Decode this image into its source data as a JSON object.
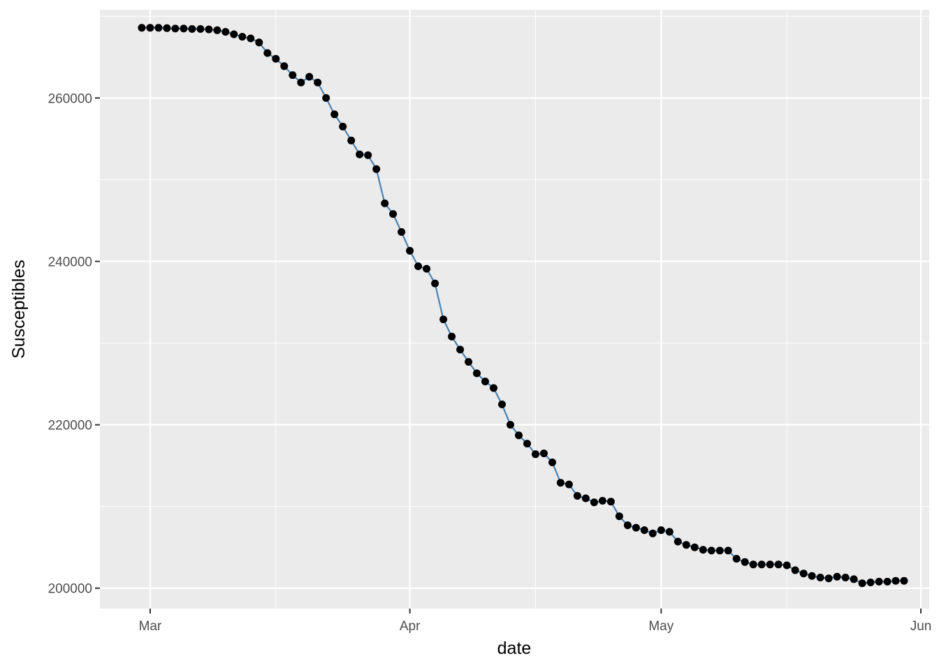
{
  "chart_data": {
    "type": "line",
    "xlabel": "date",
    "ylabel": "Susceptibles",
    "x_range": [
      "2020-02-24",
      "2020-06-02"
    ],
    "ylim": [
      197500,
      270800
    ],
    "x_ticks": [
      {
        "date": "2020-03-01",
        "label": "Mar"
      },
      {
        "date": "2020-04-01",
        "label": "Apr"
      },
      {
        "date": "2020-05-01",
        "label": "May"
      },
      {
        "date": "2020-06-01",
        "label": "Jun"
      }
    ],
    "x_minor_ticks": [
      "2020-03-16",
      "2020-04-16",
      "2020-05-16"
    ],
    "y_ticks": [
      200000,
      220000,
      240000,
      260000
    ],
    "y_minor_ticks": [
      210000,
      230000,
      250000,
      270000
    ],
    "grid": true,
    "colors": {
      "line": "#4682B4",
      "points": "#000000",
      "panel": "#EBEBEB",
      "grid": "#FFFFFF"
    },
    "start_date": "2020-02-29",
    "series": [
      {
        "values": [
          268600,
          268600,
          268600,
          268550,
          268500,
          268500,
          268450,
          268450,
          268400,
          268300,
          268100,
          267800,
          267500,
          267300,
          266800,
          265500,
          264800,
          263900,
          262800,
          261900,
          262600,
          261900,
          260000,
          258000,
          256500,
          254800,
          253100,
          253000,
          251300,
          247100,
          245800,
          243600,
          241300,
          239400,
          239100,
          237300,
          232900,
          230800,
          229200,
          227700,
          226300,
          225300,
          224500,
          222500,
          220000,
          218700,
          217700,
          216400,
          216500,
          215400,
          212900,
          212700,
          211300,
          211000,
          210500,
          210700,
          210600,
          208800,
          207700,
          207400,
          207100,
          206700,
          207100,
          206900,
          205700,
          205300,
          205000,
          204700,
          204600,
          204600,
          204600,
          203600,
          203200,
          202900,
          202900,
          202900,
          202900,
          202800,
          202200,
          201800,
          201500,
          201300,
          201200,
          201400,
          201300,
          201100,
          200600,
          200700,
          200800,
          200800,
          200900,
          200900
        ]
      }
    ]
  }
}
